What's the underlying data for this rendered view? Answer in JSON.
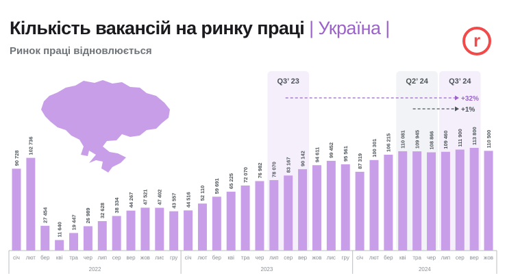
{
  "header": {
    "title": "Кількість вакансій на ринку праці",
    "title_accent": "| Україна |",
    "subtitle": "Ринок праці відновлюється",
    "logo_letter": "r"
  },
  "colors": {
    "bar": "#c99ee8",
    "accent": "#9b63c9",
    "highlight_purple": "#f5effc",
    "highlight_gray": "#f2f3f6",
    "logo": "#f04a4a"
  },
  "chart_data": {
    "type": "bar",
    "title": "Кількість вакансій на ринку праці",
    "grid": false,
    "years": [
      {
        "label": "2022",
        "months": 12
      },
      {
        "label": "2023",
        "months": 12
      },
      {
        "label": "2024",
        "months": 10
      }
    ],
    "categories": [
      "січ",
      "лют",
      "бер",
      "кві",
      "тра",
      "чер",
      "лип",
      "сер",
      "вер",
      "жов",
      "лис",
      "гру",
      "січ",
      "лют",
      "бер",
      "кві",
      "тра",
      "чер",
      "лип",
      "сер",
      "вер",
      "жов",
      "лис",
      "гру",
      "січ",
      "лют",
      "бер",
      "кві",
      "тра",
      "чер",
      "лип",
      "сер",
      "вер",
      "жов"
    ],
    "values": [
      90728,
      102736,
      27454,
      11640,
      19447,
      26989,
      32628,
      38334,
      44267,
      47521,
      47402,
      43557,
      44516,
      52110,
      59691,
      65225,
      72070,
      76982,
      78070,
      83167,
      90142,
      94611,
      99452,
      95561,
      87319,
      100301,
      106215,
      110081,
      109945,
      108866,
      109460,
      111900,
      113800,
      110500
    ],
    "value_labels": [
      "90 728",
      "102 736",
      "27 454",
      "11 640",
      "19 447",
      "26 989",
      "32 628",
      "38 334",
      "44 267",
      "47 521",
      "47 402",
      "43 557",
      "44 516",
      "52 110",
      "59 691",
      "65 225",
      "72 070",
      "76 982",
      "78 070",
      "83 167",
      "90 142",
      "94 611",
      "99 452",
      "95 561",
      "87 319",
      "100 301",
      "106 215",
      "110 081",
      "109 945",
      "108 866",
      "109 460",
      "111 900",
      "113 800",
      "110 500"
    ],
    "highlights": [
      {
        "label": "Q3’ 23",
        "from_index": 18,
        "to_index": 20,
        "color": "purple"
      },
      {
        "label": "Q2’ 24",
        "from_index": 27,
        "to_index": 29,
        "color": "gray"
      },
      {
        "label": "Q3’ 24",
        "from_index": 30,
        "to_index": 32,
        "color": "purple"
      }
    ],
    "annotations": [
      {
        "text": "+32%",
        "from": "Q3’ 23",
        "to": "Q3’ 24",
        "color": "#9b63c9"
      },
      {
        "text": "+1%",
        "from": "Q2’ 24",
        "to": "Q3’ 24",
        "color": "#4c5358"
      }
    ]
  }
}
